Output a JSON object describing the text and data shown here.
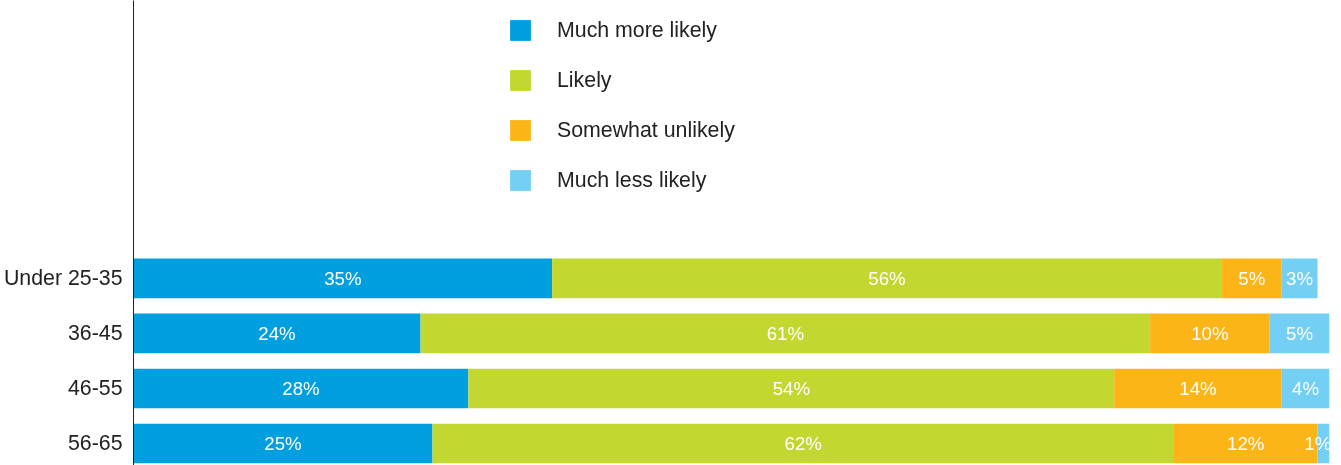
{
  "chart_data": {
    "type": "bar",
    "orientation": "horizontal",
    "stacked": true,
    "categories": [
      "Under 25-35",
      "36-45",
      "46-55",
      "56-65"
    ],
    "xlim": [
      0,
      100
    ],
    "tick_labels": "y",
    "grid": false,
    "legend": "top",
    "series": [
      {
        "name": "Much more likely",
        "color": "#009fdf",
        "values": [
          35,
          24,
          28,
          25
        ],
        "value_labels": [
          "35%",
          "24%",
          "28%",
          "25%"
        ]
      },
      {
        "name": "Likely",
        "color": "#c2d830",
        "values": [
          56,
          61,
          54,
          62
        ],
        "value_labels": [
          "56%",
          "61%",
          "54%",
          "62%"
        ]
      },
      {
        "name": "Somewhat unlikely",
        "color": "#fbb516",
        "values": [
          5,
          10,
          14,
          12
        ],
        "value_labels": [
          "5%",
          "10%",
          "14%",
          "12%"
        ]
      },
      {
        "name": "Much less likely",
        "color": "#73d0f4",
        "values": [
          3,
          5,
          4,
          1
        ],
        "value_labels": [
          "3%",
          "5%",
          "4%",
          "1%"
        ]
      }
    ]
  }
}
